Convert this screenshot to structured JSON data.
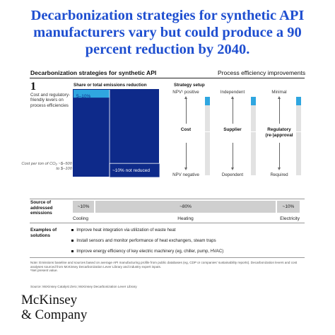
{
  "headline": "Decarbonization strategies for synthetic API manufacturers vary but could produce a 90 percent reduction by 2040.",
  "header": {
    "left_title": "Decarbonization strategies for synthetic API",
    "right_title": "Process efficiency improvements"
  },
  "step": {
    "number": "1",
    "description": "Cost and regulatory-friendly levers on process efficiencies",
    "cost_note": "Cost per ton of CO₂ ~$–500 to $–100"
  },
  "chart_data": {
    "type": "bar",
    "title": "Share or total emissions reduction",
    "categories": [
      "5–10%",
      "~10% not reduced"
    ],
    "series": [
      {
        "values": [
          7.5,
          10
        ]
      }
    ],
    "colors": {
      "reduced": "#2fa6e0",
      "not_reduced": "#0e2a8a",
      "remainder": "#0e2a8a"
    },
    "ylim": [
      0,
      100
    ]
  },
  "strategy": {
    "title": "Strategy setup",
    "columns": [
      {
        "top": "NPV¹ positive",
        "mid": "Cost",
        "bottom": "NPV negative",
        "level": 1
      },
      {
        "top": "Independent",
        "mid": "Supplier",
        "bottom": "Dependent",
        "level": 1
      },
      {
        "top": "Minimal",
        "mid": "Regulatory (re-)approval",
        "bottom": "Required",
        "level": 1
      }
    ]
  },
  "source_emissions": {
    "label": "Source of addressed emissions",
    "segments": [
      {
        "value": "~10%",
        "share": 10,
        "name": "Cooling"
      },
      {
        "value": "~80%",
        "share": 80,
        "name": "Heating"
      },
      {
        "value": "~10%",
        "share": 10,
        "name": "Electricity"
      }
    ],
    "bar_color": "#cfcfcf"
  },
  "examples": {
    "label": "Examples of solutions",
    "items": [
      "Improve heat integration via utilization of waste heat",
      "Install sensors and monitor performance of heat exchangers, steam traps",
      "Improve energy efficiency of key electric machinery (eg, chiller, pump, HVAC)"
    ]
  },
  "footnotes": {
    "note": "Note: Emissions baseline and sources based on average API manufacturing profile from public databases (eg, CDP or companies' sustainability reports). Decarbonization levers and cost analyses sourced from McKinsey Decarbonization Lever Library and industry expert inputs.",
    "footnote1": "¹Net present value.",
    "source": "Source: McKinsey Catalyst Zero; McKinsey Decarbonization Lever Library"
  },
  "brand": {
    "line1": "McKinsey",
    "line2": "& Company",
    "accent": "#1f4fd0"
  }
}
